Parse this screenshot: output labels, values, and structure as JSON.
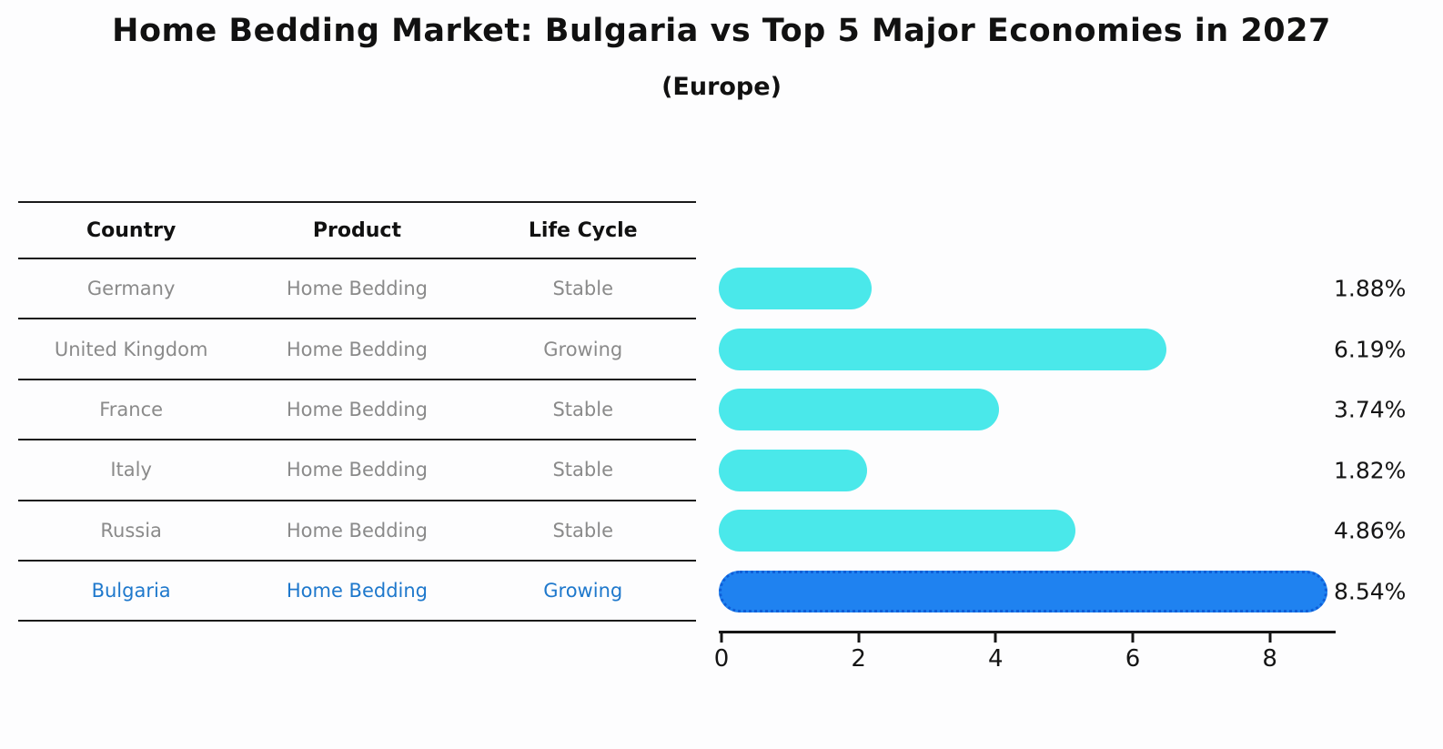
{
  "title": "Home Bedding Market: Bulgaria vs Top 5 Major Economies in 2027",
  "subtitle": "(Europe)",
  "table": {
    "headers": [
      "Country",
      "Product",
      "Life Cycle"
    ],
    "rows": [
      {
        "country": "Germany",
        "product": "Home Bedding",
        "life_cycle": "Stable",
        "highlight": false
      },
      {
        "country": "United Kingdom",
        "product": "Home Bedding",
        "life_cycle": "Growing",
        "highlight": false
      },
      {
        "country": "France",
        "product": "Home Bedding",
        "life_cycle": "Stable",
        "highlight": false
      },
      {
        "country": "Italy",
        "product": "Home Bedding",
        "life_cycle": "Stable",
        "highlight": false
      },
      {
        "country": "Russia",
        "product": "Home Bedding",
        "life_cycle": "Stable",
        "highlight": false
      },
      {
        "country": "Bulgaria",
        "product": "Home Bedding",
        "life_cycle": "Growing",
        "highlight": true
      }
    ]
  },
  "chart_data": {
    "type": "bar",
    "orientation": "horizontal",
    "title": "Home Bedding Market: Bulgaria vs Top 5 Major Economies in 2027",
    "subtitle": "(Europe)",
    "categories": [
      "Germany",
      "United Kingdom",
      "France",
      "Italy",
      "Russia",
      "Bulgaria"
    ],
    "values": [
      1.88,
      6.19,
      3.74,
      1.82,
      4.86,
      8.54
    ],
    "value_labels": [
      "1.88%",
      "6.19%",
      "3.74%",
      "1.82%",
      "4.86%",
      "8.54%"
    ],
    "x_ticks": [
      0,
      2,
      4,
      6,
      8
    ],
    "xlim": [
      0,
      9
    ],
    "grid": false,
    "legend": false,
    "highlight_index": 5,
    "bar_color": "#4ae8ea",
    "highlight_bar_color": "#1f82f0",
    "highlight_border_color": "#0e5ed8",
    "highlight_text_color": "#1e78cc"
  }
}
